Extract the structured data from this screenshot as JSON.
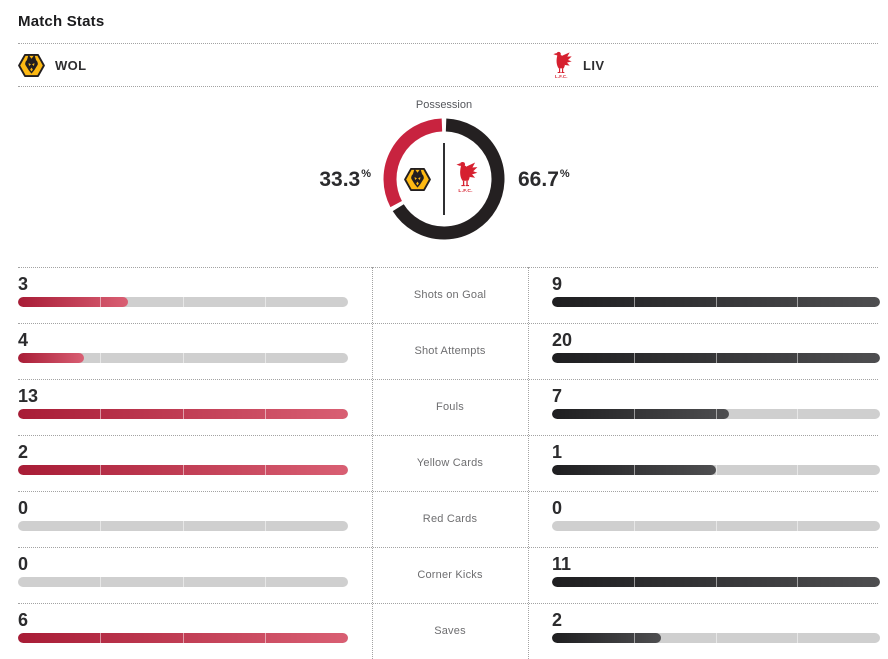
{
  "page": {
    "title": "Match Stats"
  },
  "teams": {
    "home": {
      "abbrev": "WOL",
      "logo": "wolves-crest"
    },
    "away": {
      "abbrev": "LIV",
      "logo": "liverpool-liver-bird",
      "logo_text": "L.F.C."
    }
  },
  "possession": {
    "label": "Possession",
    "home": {
      "value": "33.3",
      "unit": "%"
    },
    "away": {
      "value": "66.7",
      "unit": "%"
    }
  },
  "stats": {
    "rows": [
      {
        "label": "Shots on Goal",
        "home": 3,
        "away": 9
      },
      {
        "label": "Shot Attempts",
        "home": 4,
        "away": 20
      },
      {
        "label": "Fouls",
        "home": 13,
        "away": 7
      },
      {
        "label": "Yellow Cards",
        "home": 2,
        "away": 1
      },
      {
        "label": "Red Cards",
        "home": 0,
        "away": 0
      },
      {
        "label": "Corner Kicks",
        "home": 0,
        "away": 11
      },
      {
        "label": "Saves",
        "home": 6,
        "away": 2
      }
    ]
  },
  "chart_data": [
    {
      "type": "pie",
      "style": "donut",
      "title": "Possession",
      "labels": [
        "WOL",
        "LIV"
      ],
      "values": [
        33.3,
        66.7
      ],
      "unit": "%",
      "colors": [
        "#c8233f",
        "#231f20"
      ],
      "legend_position": "inside-center-logos"
    },
    {
      "type": "bar",
      "title": "Match Stats",
      "categories": [
        "Shots on Goal",
        "Shot Attempts",
        "Fouls",
        "Yellow Cards",
        "Red Cards",
        "Corner Kicks",
        "Saves"
      ],
      "series": [
        {
          "name": "WOL",
          "values": [
            3,
            4,
            13,
            2,
            0,
            0,
            6
          ]
        },
        {
          "name": "LIV",
          "values": [
            9,
            20,
            7,
            1,
            0,
            11,
            2
          ]
        }
      ],
      "layout": "mirrored horizontal bars, each side scaled to the max of the pair",
      "segments_per_bar": 4,
      "grid": false
    }
  ],
  "colors": {
    "home_accent": "#c8233f",
    "away_accent": "#242021",
    "home_bar_start": "#a81c36",
    "home_bar_end": "#d95f73",
    "away_bar_start": "#1e1e20",
    "away_bar_end": "#4e4e50",
    "bar_track": "#cfcfcf",
    "wolves_gold": "#fdb913",
    "wolves_black": "#231f20",
    "liverpool_red": "#d6202f"
  }
}
